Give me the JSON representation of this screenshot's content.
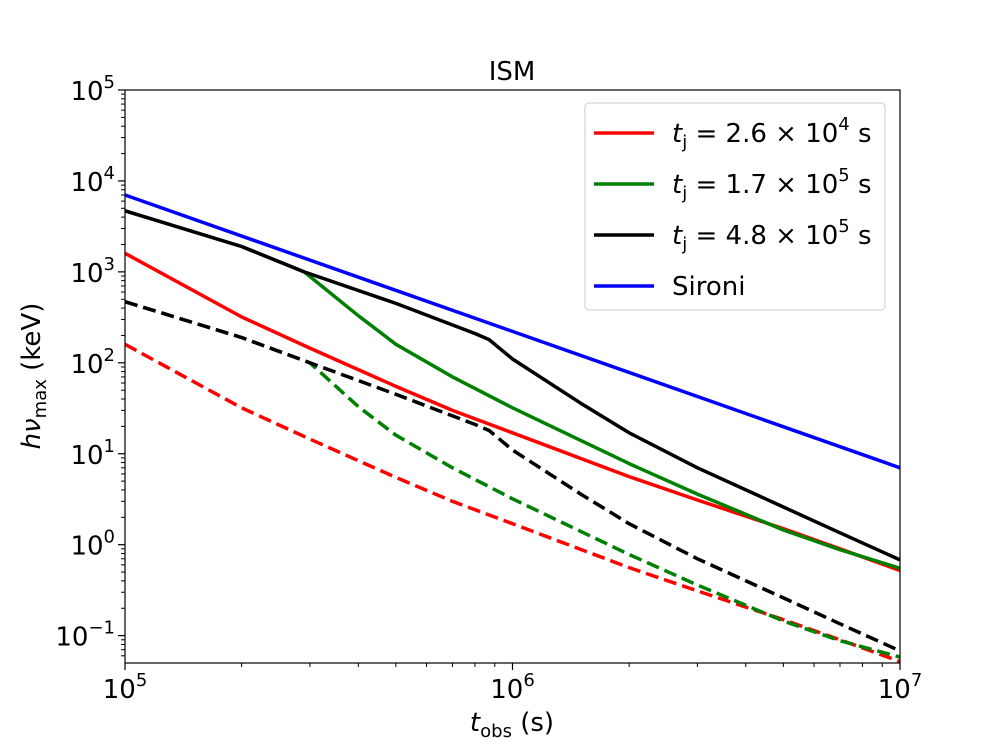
{
  "chart_data": {
    "type": "line",
    "title": "ISM",
    "xlabel": "t_obs (s)",
    "ylabel": "hν_max (keV)",
    "xscale": "log",
    "yscale": "log",
    "xlim": [
      100000,
      10000000
    ],
    "ylim": [
      0.05,
      100000
    ],
    "x_ticks": [
      {
        "value": 100000,
        "base": "10",
        "exp": "5"
      },
      {
        "value": 1000000,
        "base": "10",
        "exp": "6"
      },
      {
        "value": 10000000,
        "base": "10",
        "exp": "7"
      }
    ],
    "y_ticks": [
      {
        "value": 0.1,
        "base": "10",
        "exp": "−1"
      },
      {
        "value": 1,
        "base": "10",
        "exp": "0"
      },
      {
        "value": 10,
        "base": "10",
        "exp": "1"
      },
      {
        "value": 100,
        "base": "10",
        "exp": "2"
      },
      {
        "value": 1000,
        "base": "10",
        "exp": "3"
      },
      {
        "value": 10000,
        "base": "10",
        "exp": "4"
      },
      {
        "value": 100000,
        "base": "10",
        "exp": "5"
      }
    ],
    "legend_position": "top-right",
    "series": [
      {
        "name": "t_j = 2.6 × 10^4 s",
        "legend": {
          "mant": "2.6",
          "exp": "4"
        },
        "color": "#ff0000",
        "dash": false,
        "x": [
          100000,
          200000,
          300000,
          500000,
          700000,
          1000000,
          2000000,
          3000000,
          5000000,
          7000000,
          10000000
        ],
        "y": [
          1600,
          320,
          145,
          55,
          30,
          17,
          5.6,
          3.1,
          1.5,
          0.9,
          0.52
        ]
      },
      {
        "name": "t_j = 2.6 × 10^4 s (dashed)",
        "color": "#ff0000",
        "dash": true,
        "x": [
          100000,
          200000,
          300000,
          500000,
          700000,
          1000000,
          2000000,
          3000000,
          5000000,
          7000000,
          10000000
        ],
        "y": [
          160,
          32,
          14.5,
          5.5,
          3.0,
          1.7,
          0.56,
          0.31,
          0.15,
          0.09,
          0.052
        ]
      },
      {
        "name": "t_j = 1.7 × 10^5 s",
        "legend": {
          "mant": "1.7",
          "exp": "5"
        },
        "color": "#008000",
        "dash": false,
        "x": [
          100000,
          200000,
          290000,
          400000,
          500000,
          700000,
          1000000,
          2000000,
          3000000,
          5000000,
          7000000,
          10000000
        ],
        "y": [
          4700,
          1900,
          1000,
          330,
          160,
          70,
          32,
          7.8,
          3.6,
          1.45,
          0.88,
          0.55
        ]
      },
      {
        "name": "t_j = 1.7 × 10^5 s (dashed)",
        "color": "#008000",
        "dash": true,
        "x": [
          100000,
          200000,
          300000,
          400000,
          500000,
          700000,
          1000000,
          2000000,
          3000000,
          5000000,
          7000000,
          10000000
        ],
        "y": [
          470,
          190,
          100,
          33,
          16,
          7,
          3.2,
          0.78,
          0.36,
          0.145,
          0.088,
          0.058
        ]
      },
      {
        "name": "t_j = 4.8 × 10^5 s",
        "legend": {
          "mant": "4.8",
          "exp": "5"
        },
        "color": "#000000",
        "dash": false,
        "x": [
          100000,
          200000,
          290000,
          500000,
          800000,
          870000,
          1000000,
          1500000,
          2000000,
          3000000,
          5000000,
          7000000,
          10000000
        ],
        "y": [
          4700,
          1900,
          1000,
          450,
          210,
          180,
          110,
          36,
          17,
          7,
          2.6,
          1.35,
          0.68
        ]
      },
      {
        "name": "t_j = 4.8 × 10^5 s (dashed)",
        "color": "#000000",
        "dash": true,
        "x": [
          100000,
          200000,
          300000,
          500000,
          800000,
          870000,
          1000000,
          1500000,
          2000000,
          3000000,
          5000000,
          7000000,
          10000000
        ],
        "y": [
          470,
          190,
          100,
          45,
          21,
          18,
          11,
          3.6,
          1.7,
          0.7,
          0.26,
          0.135,
          0.068
        ]
      },
      {
        "name": "Sironi",
        "legend": {
          "label": "Sironi"
        },
        "color": "#0000ff",
        "dash": false,
        "x": [
          100000,
          10000000
        ],
        "y": [
          7000,
          7
        ]
      }
    ]
  }
}
